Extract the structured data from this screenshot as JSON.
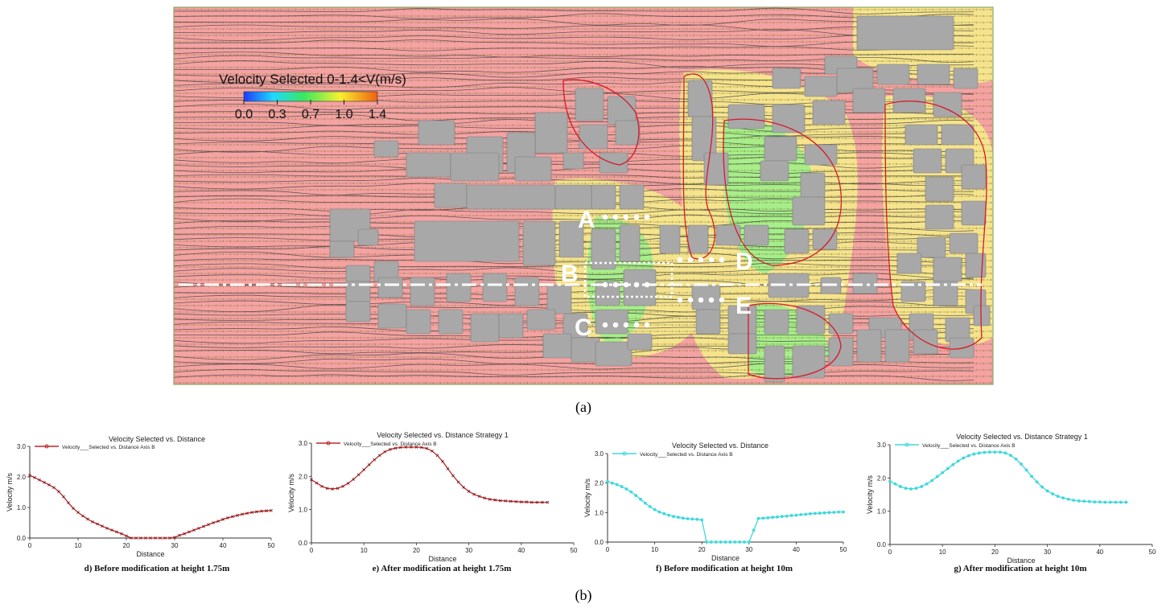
{
  "figure": {
    "caption_a": "(a)",
    "caption_b": "(b)"
  },
  "cfd_map": {
    "legend_title": "Velocity Selected 0-1.4<V(m/s)",
    "legend_ticks": [
      "0.0",
      "0.3",
      "0.7",
      "1.0",
      "1.4"
    ],
    "legend_colors": [
      "#1c3cff",
      "#20d8ff",
      "#38e860",
      "#f8f030",
      "#f06010"
    ],
    "background_color": "#f4a2a2",
    "building_color": "#a8a8a8",
    "marker_labels": [
      "A",
      "B",
      "C",
      "D",
      "E"
    ]
  },
  "chart_data": [
    {
      "type": "line",
      "title": "Velocity Selected vs. Distance",
      "legend": "Velocity___Selected vs. Distance Axis B",
      "xlabel": "Distance",
      "ylabel": "Velocity m/s",
      "xlim": [
        0,
        50
      ],
      "ylim": [
        0,
        3.0
      ],
      "xticks": [
        "0",
        "10",
        "20",
        "30",
        "40",
        "50"
      ],
      "yticks": [
        "0.0",
        "1.0",
        "2.0",
        "3.0"
      ],
      "color": "#c0282c",
      "marker": "x",
      "caption": "d) Before modification at height 1.75m",
      "series": [
        {
          "x": [
            0,
            1,
            2,
            3,
            4,
            5,
            6,
            7,
            8,
            9,
            10,
            11,
            12,
            13,
            14,
            15,
            16,
            17,
            18,
            19,
            20,
            21,
            22,
            23,
            24,
            25,
            26,
            27,
            28,
            29,
            30,
            31,
            32,
            33,
            34,
            35,
            36,
            37,
            38,
            39,
            40,
            41,
            42,
            43,
            44,
            45,
            46,
            47,
            48,
            49,
            50
          ],
          "values": [
            2.05,
            1.98,
            1.9,
            1.82,
            1.74,
            1.65,
            1.52,
            1.35,
            1.15,
            0.97,
            0.84,
            0.72,
            0.62,
            0.53,
            0.46,
            0.39,
            0.32,
            0.26,
            0.2,
            0.14,
            0.07,
            0.0,
            0.0,
            0.0,
            0.0,
            0.0,
            0.0,
            0.0,
            0.0,
            0.0,
            0.02,
            0.09,
            0.14,
            0.2,
            0.26,
            0.32,
            0.38,
            0.44,
            0.5,
            0.55,
            0.61,
            0.66,
            0.7,
            0.74,
            0.78,
            0.81,
            0.84,
            0.86,
            0.88,
            0.89,
            0.9
          ]
        }
      ]
    },
    {
      "type": "line",
      "title": "Velocity Selected vs. Distance Strategy 1",
      "legend": "Velocity___Selected vs. Distance Axis B",
      "xlabel": "Distance",
      "ylabel": "Velocity m/s",
      "xlim": [
        0,
        50
      ],
      "ylim": [
        0,
        3.0
      ],
      "xticks": [
        "0",
        "10",
        "20",
        "30",
        "40",
        "50"
      ],
      "yticks": [
        "0.0",
        "1.0",
        "2.0",
        "3.0"
      ],
      "color": "#c0282c",
      "marker": "x",
      "caption": "e) After modification at height 1.75m",
      "series": [
        {
          "x": [
            0,
            1,
            2,
            3,
            4,
            5,
            6,
            7,
            8,
            9,
            10,
            11,
            12,
            13,
            14,
            15,
            16,
            17,
            18,
            19,
            20,
            21,
            22,
            23,
            24,
            25,
            26,
            27,
            28,
            29,
            30,
            31,
            32,
            33,
            34,
            35,
            36,
            37,
            38,
            39,
            40,
            41,
            42,
            43,
            44,
            45
          ],
          "values": [
            1.9,
            1.8,
            1.7,
            1.64,
            1.62,
            1.64,
            1.7,
            1.79,
            1.91,
            2.05,
            2.2,
            2.35,
            2.5,
            2.63,
            2.74,
            2.81,
            2.85,
            2.87,
            2.88,
            2.88,
            2.88,
            2.87,
            2.84,
            2.76,
            2.63,
            2.45,
            2.23,
            2.02,
            1.83,
            1.67,
            1.55,
            1.46,
            1.4,
            1.35,
            1.31,
            1.29,
            1.27,
            1.26,
            1.25,
            1.24,
            1.23,
            1.23,
            1.22,
            1.22,
            1.22,
            1.22
          ]
        }
      ]
    },
    {
      "type": "line",
      "title": "Velocity Selected vs. Distance",
      "legend": "Velocity___Selected vs. Distance Axis B",
      "xlabel": "Distance",
      "ylabel": "Velocity m/s",
      "xlim": [
        0,
        50
      ],
      "ylim": [
        0,
        3.0
      ],
      "xticks": [
        "0",
        "10",
        "20",
        "30",
        "40",
        "50"
      ],
      "yticks": [
        "0.0",
        "1.0",
        "2.0",
        "3.0"
      ],
      "color": "#3ed8dc",
      "marker": "o",
      "caption": "f) Before modification at height 10m",
      "series": [
        {
          "x": [
            0,
            1,
            2,
            3,
            4,
            5,
            6,
            7,
            8,
            9,
            10,
            11,
            12,
            13,
            14,
            15,
            16,
            17,
            18,
            19,
            20,
            21,
            22,
            23,
            24,
            25,
            26,
            27,
            28,
            29,
            30,
            31,
            32,
            33,
            34,
            35,
            36,
            37,
            38,
            39,
            40,
            41,
            42,
            43,
            44,
            45,
            46,
            47,
            48,
            49,
            50
          ],
          "values": [
            2.05,
            2.0,
            1.95,
            1.88,
            1.8,
            1.7,
            1.58,
            1.45,
            1.32,
            1.2,
            1.1,
            1.02,
            0.96,
            0.91,
            0.87,
            0.84,
            0.81,
            0.79,
            0.78,
            0.77,
            0.75,
            0.0,
            0.0,
            0.0,
            0.0,
            0.0,
            0.0,
            0.0,
            0.0,
            0.0,
            0.0,
            0.4,
            0.8,
            0.81,
            0.82,
            0.84,
            0.85,
            0.87,
            0.88,
            0.9,
            0.91,
            0.93,
            0.94,
            0.96,
            0.97,
            0.98,
            0.99,
            1.0,
            1.01,
            1.02,
            1.02
          ]
        }
      ]
    },
    {
      "type": "line",
      "title": "Velocity Selected vs. Distance Strategy 1",
      "legend": "Velocity___Selected vs. Distance Axis B",
      "xlabel": "Distance",
      "ylabel": "Velocity m/s",
      "xlim": [
        0,
        50
      ],
      "ylim": [
        0,
        3.0
      ],
      "xticks": [
        "0",
        "10",
        "20",
        "30",
        "40",
        "50"
      ],
      "yticks": [
        "0.0",
        "1.0",
        "2.0",
        "3.0"
      ],
      "color": "#3ed8dc",
      "marker": "o",
      "caption": "g) After modification at height 10m",
      "series": [
        {
          "x": [
            0,
            1,
            2,
            3,
            4,
            5,
            6,
            7,
            8,
            9,
            10,
            11,
            12,
            13,
            14,
            15,
            16,
            17,
            18,
            19,
            20,
            21,
            22,
            23,
            24,
            25,
            26,
            27,
            28,
            29,
            30,
            31,
            32,
            33,
            34,
            35,
            36,
            37,
            38,
            39,
            40,
            41,
            42,
            43,
            44,
            45
          ],
          "values": [
            1.9,
            1.82,
            1.74,
            1.69,
            1.67,
            1.69,
            1.74,
            1.82,
            1.92,
            2.04,
            2.16,
            2.28,
            2.4,
            2.51,
            2.6,
            2.67,
            2.72,
            2.75,
            2.77,
            2.78,
            2.78,
            2.78,
            2.75,
            2.68,
            2.57,
            2.42,
            2.24,
            2.05,
            1.88,
            1.73,
            1.61,
            1.52,
            1.45,
            1.4,
            1.36,
            1.33,
            1.31,
            1.3,
            1.29,
            1.28,
            1.28,
            1.27,
            1.27,
            1.27,
            1.27,
            1.27
          ]
        }
      ]
    }
  ]
}
